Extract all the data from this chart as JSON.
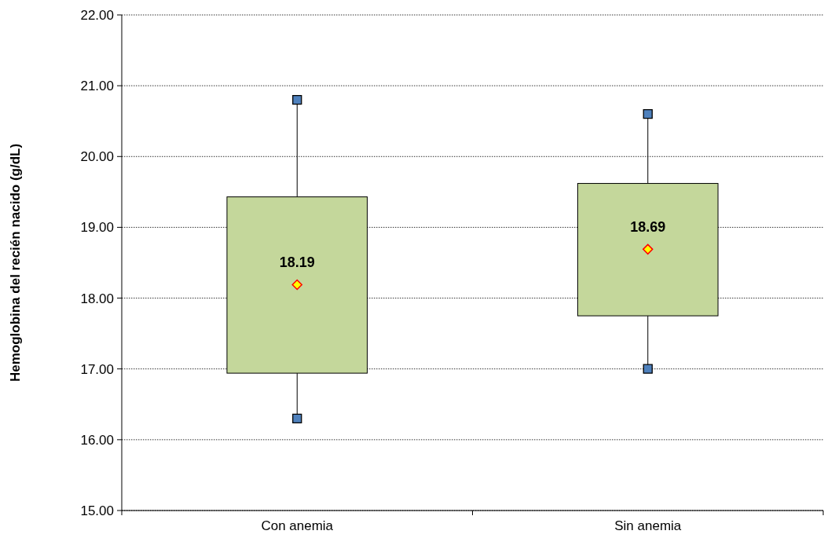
{
  "chart_data": {
    "type": "box",
    "ylabel": "Hemoglobina del recién nacido  (g/dL)",
    "categories": [
      "Con anemia",
      "Sin anemia"
    ],
    "ylim": [
      15,
      22
    ],
    "yticks": [
      {
        "value": 15,
        "label": "15.00"
      },
      {
        "value": 16,
        "label": "16.00"
      },
      {
        "value": 17,
        "label": "17.00"
      },
      {
        "value": 18,
        "label": "18.00"
      },
      {
        "value": 19,
        "label": "19.00"
      },
      {
        "value": 20,
        "label": "20.00"
      },
      {
        "value": 21,
        "label": "21.00"
      },
      {
        "value": 22,
        "label": "22.00"
      }
    ],
    "grid": "y",
    "color": "#c4d79b",
    "marker": "square",
    "value_labels": [
      "18.19",
      "18.69"
    ],
    "boxes": [
      {
        "low": 16.3,
        "q1": 16.94,
        "median": 18.19,
        "q3": 19.43,
        "high": 20.8
      },
      {
        "low": 17.0,
        "q1": 17.75,
        "median": 18.69,
        "q3": 19.62,
        "high": 20.6
      }
    ],
    "series": [
      {
        "type": "scatter",
        "color": "#4f81bd",
        "x": [
          "Con anemia",
          "Con anemia",
          "Sin anemia",
          "Sin anemia"
        ],
        "values": [
          20.8,
          16.3,
          20.6,
          17.0
        ]
      }
    ]
  }
}
